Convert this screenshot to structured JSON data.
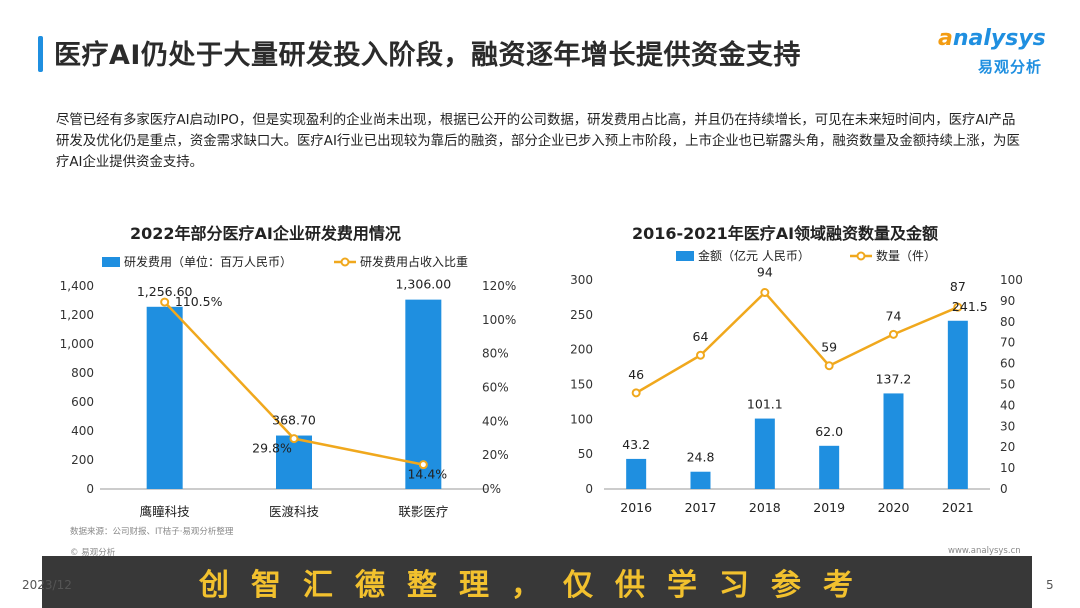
{
  "header": {
    "title": "医疗AI仍处于大量研发投入阶段，融资逐年增长提供资金支持",
    "logo_en_prefix": "a",
    "logo_en_rest": "nalysys",
    "logo_cn": "易观分析"
  },
  "intro": "尽管已经有多家医疗AI启动IPO，但是实现盈利的企业尚未出现，根据已公开的公司数据，研发费用占比高，并且仍在持续增长，可见在未来短时间内，医疗AI产品研发及优化仍是重点，资金需求缺口大。医疗AI行业已出现较为靠后的融资，部分企业已步入预上市阶段，上市企业也已崭露头角，融资数量及金额持续上涨，为医疗AI企业提供资金支持。",
  "colors": {
    "bar": "#1f8fe0",
    "line": "#f0a81d",
    "accent": "#1f8fe0"
  },
  "chart_data": [
    {
      "type": "bar",
      "title": "2022年部分医疗AI企业研发费用情况",
      "categories": [
        "鹰瞳科技",
        "医渡科技",
        "联影医疗"
      ],
      "series": [
        {
          "name": "研发费用（单位：百万人民币）",
          "type": "bar",
          "axis": "left",
          "values": [
            1256.6,
            368.7,
            1306.0
          ],
          "labels": [
            "1,256.60",
            "368.70",
            "1,306.00"
          ]
        },
        {
          "name": "研发费用占收入比重",
          "type": "line",
          "axis": "right",
          "values": [
            110.5,
            29.8,
            14.4
          ],
          "labels": [
            "110.5%",
            "29.8%",
            "14.4%"
          ]
        }
      ],
      "ylim": [
        0,
        1400
      ],
      "yticks": [
        "0",
        "200",
        "400",
        "600",
        "800",
        "1,000",
        "1,200",
        "1,400"
      ],
      "y2lim": [
        0,
        120
      ],
      "y2ticks": [
        "0%",
        "20%",
        "40%",
        "60%",
        "80%",
        "100%",
        "120%"
      ]
    },
    {
      "type": "bar",
      "title": "2016-2021年医疗AI领域融资数量及金额",
      "categories": [
        "2016",
        "2017",
        "2018",
        "2019",
        "2020",
        "2021"
      ],
      "series": [
        {
          "name": "金额（亿元 人民币）",
          "type": "bar",
          "axis": "left",
          "values": [
            43.2,
            24.8,
            101.1,
            62.0,
            137.2,
            241.5
          ],
          "labels": [
            "43.2",
            "24.8",
            "101.1",
            "62.0",
            "137.2",
            "241.5"
          ]
        },
        {
          "name": "数量（件）",
          "type": "line",
          "axis": "right",
          "values": [
            46,
            64,
            94,
            59,
            74,
            87
          ],
          "labels": [
            "46",
            "64",
            "94",
            "59",
            "74",
            "87"
          ]
        }
      ],
      "ylim": [
        0,
        300
      ],
      "yticks": [
        "0",
        "50",
        "100",
        "150",
        "200",
        "250",
        "300"
      ],
      "y2lim": [
        0,
        100
      ],
      "y2ticks": [
        "0",
        "10",
        "20",
        "30",
        "40",
        "50",
        "60",
        "70",
        "80",
        "90",
        "100"
      ]
    }
  ],
  "footer": {
    "source": "数据来源：公司财报、IT桔子·易观分析整理",
    "copyright": "© 易观分析",
    "website": "www.analysys.cn",
    "date": "2023/12",
    "page": "5"
  },
  "watermark": "创智汇德整理，仅供学习参考"
}
